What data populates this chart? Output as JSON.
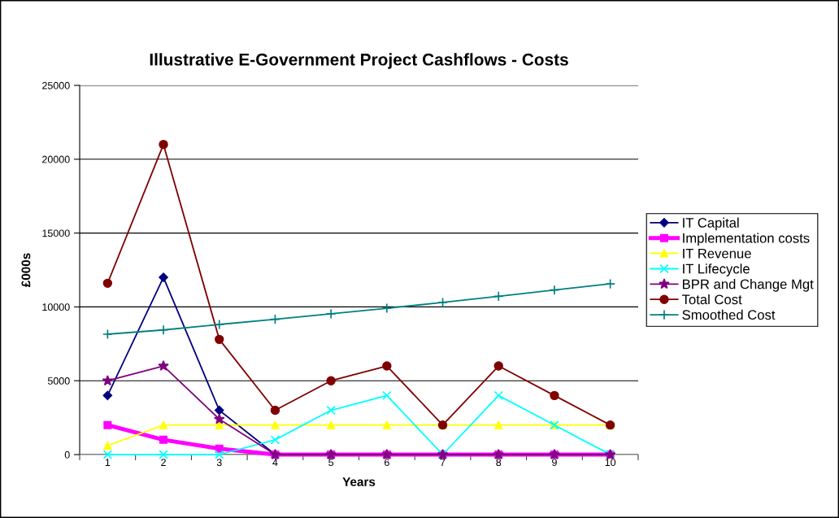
{
  "chart_data": {
    "type": "line",
    "title": "Illustrative E-Government Project Cashflows - Costs",
    "xlabel": "Years",
    "ylabel": "£000s",
    "categories": [
      "1",
      "2",
      "3",
      "4",
      "5",
      "6",
      "7",
      "8",
      "9",
      "10"
    ],
    "ylim": [
      0,
      25000
    ],
    "yticks": [
      0,
      5000,
      10000,
      15000,
      20000,
      25000
    ],
    "grid": "y",
    "legend": "right",
    "series": [
      {
        "name": "IT Capital",
        "color": "#000080",
        "marker": "diamond",
        "values": [
          4000,
          12000,
          3000,
          0,
          null,
          null,
          null,
          null,
          null,
          null
        ]
      },
      {
        "name": "Implementation costs",
        "color": "#ff00ff",
        "marker": "square",
        "values": [
          2000,
          1000,
          400,
          0,
          0,
          0,
          0,
          0,
          0,
          0
        ]
      },
      {
        "name": "IT Revenue",
        "color": "#ffff00",
        "marker": "triangle",
        "values": [
          600,
          2000,
          2000,
          2000,
          2000,
          2000,
          2000,
          2000,
          2000,
          2000
        ]
      },
      {
        "name": "IT Lifecycle",
        "color": "#00ffff",
        "marker": "cross",
        "values": [
          0,
          0,
          0,
          1000,
          3000,
          4000,
          0,
          4000,
          2000,
          0
        ]
      },
      {
        "name": "BPR and Change Mgt",
        "color": "#800080",
        "marker": "star",
        "values": [
          5000,
          6000,
          2400,
          0,
          0,
          0,
          0,
          0,
          0,
          0
        ]
      },
      {
        "name": "Total Cost",
        "color": "#800000",
        "marker": "circle",
        "values": [
          11600,
          21000,
          7800,
          3000,
          5000,
          6000,
          2000,
          6000,
          4000,
          2000
        ]
      },
      {
        "name": "Smoothed Cost",
        "color": "#008080",
        "marker": "plus",
        "values": [
          8150,
          8440,
          8810,
          9160,
          9530,
          9910,
          10300,
          10720,
          11140,
          11560
        ]
      }
    ]
  }
}
